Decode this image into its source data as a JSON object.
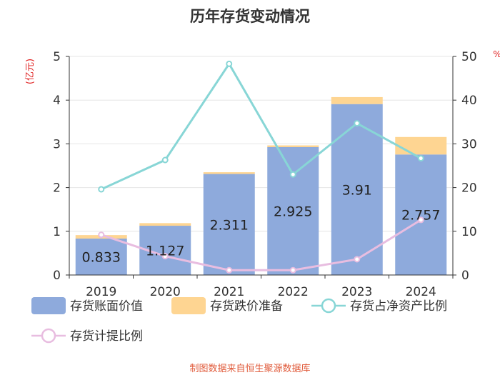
{
  "chart_data": {
    "type": "bar",
    "title": "历年存货变动情况",
    "left_axis_unit": "(亿元)",
    "right_axis_unit": "%",
    "categories": [
      "2019",
      "2020",
      "2021",
      "2022",
      "2023",
      "2024"
    ],
    "left_ylim": [
      0,
      5
    ],
    "left_ticks": [
      0,
      1,
      2,
      3,
      4,
      5
    ],
    "right_ylim": [
      0,
      50
    ],
    "right_ticks": [
      0,
      10,
      20,
      30,
      40,
      50
    ],
    "stacked": true,
    "bar_series": [
      {
        "name": "存货账面价值",
        "color": "#8eaadc",
        "values": [
          0.833,
          1.127,
          2.311,
          2.925,
          3.91,
          2.757
        ],
        "labels": [
          "0.833",
          "1.127",
          "2.311",
          "2.925",
          "3.91",
          "2.757"
        ]
      },
      {
        "name": "存货跌价准备",
        "color": "#fed592",
        "values": [
          0.08,
          0.06,
          0.04,
          0.04,
          0.16,
          0.4
        ]
      }
    ],
    "line_series": [
      {
        "name": "存货占净资产比例",
        "color": "#88d6d6",
        "axis": "right",
        "values": [
          19.6,
          26.3,
          48.3,
          23.0,
          34.7,
          26.7
        ]
      },
      {
        "name": "存货计提比例",
        "color": "#e8bde0",
        "axis": "right",
        "values": [
          9.2,
          4.3,
          1.1,
          1.1,
          3.6,
          12.6
        ]
      }
    ],
    "grid": true,
    "legend_position": "bottom"
  },
  "footer": {
    "source": "制图数据来自恒生聚源数据库"
  }
}
